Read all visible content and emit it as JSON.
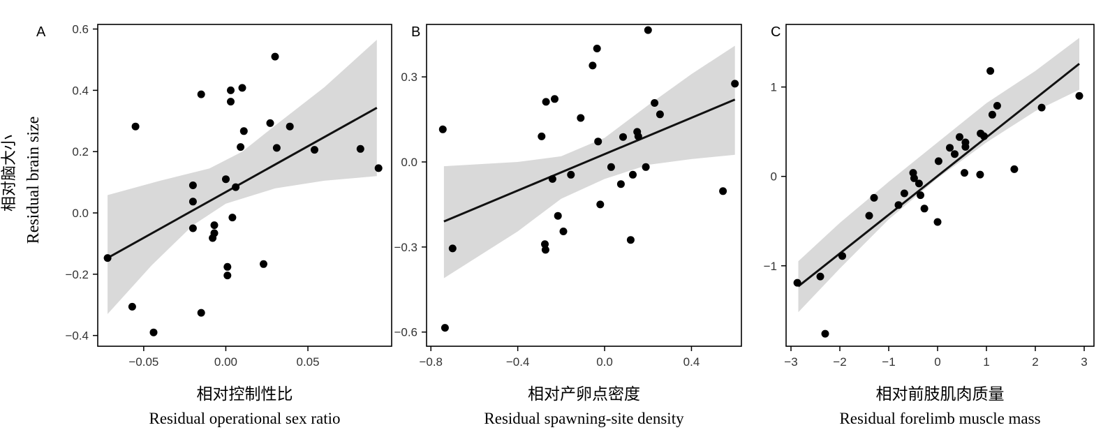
{
  "y_label_cn": "相对脑大小",
  "y_label_en": "Residual brain size",
  "chart_data": [
    {
      "type": "scatter",
      "panel": "A",
      "xlabel_cn": "相对控制性比",
      "xlabel_en": "Residual operational sex ratio",
      "ylabel": "Residual brain size",
      "xlim": [
        -0.078,
        0.101
      ],
      "ylim": [
        -0.435,
        0.615
      ],
      "xticks": [
        -0.05,
        0.0,
        0.05
      ],
      "xtick_labels": [
        "−0.05",
        "0.00",
        "0.05"
      ],
      "yticks": [
        -0.4,
        -0.2,
        0.0,
        0.2,
        0.4,
        0.6
      ],
      "ytick_labels": [
        "−0.4",
        "−0.2",
        "0.0",
        "0.2",
        "0.4",
        "0.6"
      ],
      "fit_line": [
        [
          -0.072,
          -0.147
        ],
        [
          0.092,
          0.343
        ]
      ],
      "band_upper": [
        [
          -0.072,
          0.058
        ],
        [
          -0.04,
          0.105
        ],
        [
          -0.01,
          0.145
        ],
        [
          0.01,
          0.2
        ],
        [
          0.03,
          0.285
        ],
        [
          0.06,
          0.41
        ],
        [
          0.092,
          0.565
        ]
      ],
      "band_lower": [
        [
          -0.072,
          -0.33
        ],
        [
          -0.045,
          -0.17
        ],
        [
          -0.02,
          -0.04
        ],
        [
          0.0,
          0.03
        ],
        [
          0.03,
          0.08
        ],
        [
          0.06,
          0.105
        ],
        [
          0.092,
          0.12
        ]
      ],
      "points": [
        [
          -0.072,
          -0.147
        ],
        [
          -0.057,
          -0.306
        ],
        [
          -0.055,
          0.282
        ],
        [
          -0.044,
          -0.39
        ],
        [
          -0.02,
          -0.05
        ],
        [
          -0.02,
          0.09
        ],
        [
          -0.02,
          0.037
        ],
        [
          -0.015,
          0.387
        ],
        [
          -0.015,
          -0.326
        ],
        [
          -0.008,
          -0.082
        ],
        [
          -0.007,
          -0.066
        ],
        [
          -0.007,
          -0.04
        ],
        [
          0.0,
          0.11
        ],
        [
          0.001,
          -0.176
        ],
        [
          0.001,
          -0.204
        ],
        [
          0.003,
          0.4
        ],
        [
          0.003,
          0.363
        ],
        [
          0.004,
          -0.015
        ],
        [
          0.006,
          0.084
        ],
        [
          0.009,
          0.215
        ],
        [
          0.01,
          0.408
        ],
        [
          0.011,
          0.267
        ],
        [
          0.023,
          -0.167
        ],
        [
          0.027,
          0.293
        ],
        [
          0.03,
          0.51
        ],
        [
          0.031,
          0.212
        ],
        [
          0.039,
          0.282
        ],
        [
          0.054,
          0.206
        ],
        [
          0.082,
          0.209
        ],
        [
          0.093,
          0.146
        ]
      ]
    },
    {
      "type": "scatter",
      "panel": "B",
      "xlabel_cn": "相对产卵点密度",
      "xlabel_en": "Residual spawning-site density",
      "ylabel": "Residual brain size",
      "xlim": [
        -0.82,
        0.63
      ],
      "ylim": [
        -0.65,
        0.485
      ],
      "xticks": [
        -0.8,
        -0.4,
        0.0,
        0.4
      ],
      "xtick_labels": [
        "−0.8",
        "−0.4",
        "0.0",
        "0.4"
      ],
      "yticks": [
        -0.6,
        -0.3,
        0.0,
        0.3
      ],
      "ytick_labels": [
        "−0.6",
        "−0.3",
        "0.0",
        "0.3"
      ],
      "fit_line": [
        [
          -0.74,
          -0.21
        ],
        [
          0.6,
          0.22
        ]
      ],
      "band_upper": [
        [
          -0.74,
          -0.015
        ],
        [
          -0.4,
          0.0
        ],
        [
          -0.2,
          0.02
        ],
        [
          0.0,
          0.085
        ],
        [
          0.2,
          0.2
        ],
        [
          0.4,
          0.31
        ],
        [
          0.6,
          0.41
        ]
      ],
      "band_lower": [
        [
          -0.74,
          -0.41
        ],
        [
          -0.4,
          -0.245
        ],
        [
          -0.2,
          -0.13
        ],
        [
          0.0,
          -0.06
        ],
        [
          0.2,
          -0.01
        ],
        [
          0.4,
          0.01
        ],
        [
          0.6,
          0.025
        ]
      ],
      "points": [
        [
          -0.745,
          0.115
        ],
        [
          -0.735,
          -0.585
        ],
        [
          -0.7,
          -0.305
        ],
        [
          -0.29,
          0.09
        ],
        [
          -0.275,
          -0.29
        ],
        [
          -0.272,
          -0.31
        ],
        [
          -0.27,
          0.212
        ],
        [
          -0.24,
          -0.06
        ],
        [
          -0.23,
          0.222
        ],
        [
          -0.215,
          -0.19
        ],
        [
          -0.19,
          -0.245
        ],
        [
          -0.155,
          -0.045
        ],
        [
          -0.11,
          0.155
        ],
        [
          -0.055,
          0.34
        ],
        [
          -0.035,
          0.4
        ],
        [
          -0.03,
          0.072
        ],
        [
          -0.02,
          -0.15
        ],
        [
          0.03,
          -0.018
        ],
        [
          0.075,
          -0.078
        ],
        [
          0.085,
          0.088
        ],
        [
          0.12,
          -0.275
        ],
        [
          0.13,
          -0.045
        ],
        [
          0.15,
          0.106
        ],
        [
          0.155,
          0.09
        ],
        [
          0.19,
          -0.018
        ],
        [
          0.2,
          0.465
        ],
        [
          0.23,
          0.208
        ],
        [
          0.255,
          0.168
        ],
        [
          0.545,
          -0.103
        ],
        [
          0.6,
          0.276
        ]
      ]
    },
    {
      "type": "scatter",
      "panel": "C",
      "xlabel_cn": "相对前肢肌肉质量",
      "xlabel_en": "Residual forelimb muscle mass",
      "ylabel": "Residual brain size",
      "xlim": [
        -3.1,
        3.2
      ],
      "ylim": [
        -1.9,
        1.7
      ],
      "xticks": [
        -3,
        -2,
        -1,
        0,
        1,
        2,
        3
      ],
      "xtick_labels": [
        "−3",
        "−2",
        "−1",
        "0",
        "1",
        "2",
        "3"
      ],
      "yticks": [
        -1,
        0,
        1
      ],
      "ytick_labels": [
        "−1",
        "0",
        "1"
      ],
      "fit_line": [
        [
          -2.85,
          -1.23
        ],
        [
          2.9,
          1.26
        ]
      ],
      "band_upper": [
        [
          -2.85,
          -0.95
        ],
        [
          -2.0,
          -0.52
        ],
        [
          -1.0,
          -0.06
        ],
        [
          0.0,
          0.38
        ],
        [
          1.0,
          0.82
        ],
        [
          2.0,
          1.18
        ],
        [
          2.9,
          1.55
        ]
      ],
      "band_lower": [
        [
          -2.85,
          -1.52
        ],
        [
          -2.0,
          -1.03
        ],
        [
          -1.0,
          -0.48
        ],
        [
          0.0,
          -0.02
        ],
        [
          1.0,
          0.38
        ],
        [
          2.0,
          0.73
        ],
        [
          2.9,
          0.97
        ]
      ],
      "points": [
        [
          -2.87,
          -1.19
        ],
        [
          -2.4,
          -1.12
        ],
        [
          -2.3,
          -1.76
        ],
        [
          -1.95,
          -0.89
        ],
        [
          -1.4,
          -0.44
        ],
        [
          -1.3,
          -0.24
        ],
        [
          -0.8,
          -0.32
        ],
        [
          -0.68,
          -0.19
        ],
        [
          -0.5,
          0.04
        ],
        [
          -0.48,
          -0.02
        ],
        [
          -0.38,
          -0.08
        ],
        [
          -0.35,
          -0.21
        ],
        [
          -0.27,
          -0.36
        ],
        [
          0.0,
          -0.51
        ],
        [
          0.02,
          0.17
        ],
        [
          0.25,
          0.32
        ],
        [
          0.35,
          0.25
        ],
        [
          0.45,
          0.44
        ],
        [
          0.55,
          0.04
        ],
        [
          0.57,
          0.38
        ],
        [
          0.57,
          0.33
        ],
        [
          0.87,
          0.02
        ],
        [
          0.88,
          0.48
        ],
        [
          0.95,
          0.45
        ],
        [
          1.08,
          1.18
        ],
        [
          1.12,
          0.69
        ],
        [
          1.22,
          0.79
        ],
        [
          1.57,
          0.08
        ],
        [
          2.13,
          0.77
        ],
        [
          2.9,
          0.9
        ]
      ]
    }
  ],
  "colors": {
    "points": "#000000",
    "fit_line": "#111111",
    "band": "#d9d9d9",
    "frame": "#000000"
  }
}
